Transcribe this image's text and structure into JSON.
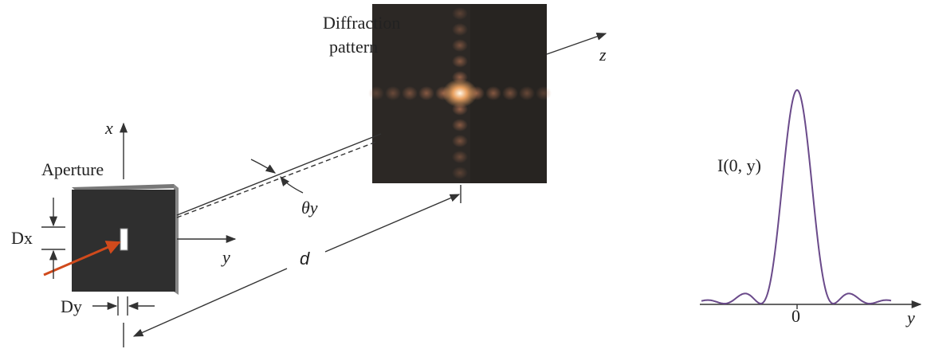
{
  "labels": {
    "pattern_line1": "Diffraction",
    "pattern_line2": "pattern",
    "z_axis": "z",
    "x_axis": "x",
    "aperture": "Aperture",
    "dx": "Dx",
    "y_axis": "y",
    "theta": "θy",
    "distance": "d",
    "dy": "Dy",
    "intensity": "I(0, y)",
    "origin": "0",
    "plot_axis": "y"
  }
}
